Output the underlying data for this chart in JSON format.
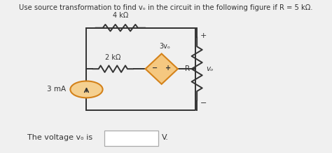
{
  "title": "Use source transformation to find vₒ in the circuit in the following figure if R = 5 kΩ.",
  "bottom_text_prefix": "The voltage vₒ is",
  "bottom_text_suffix": "V.",
  "bg": "#f0f0f0",
  "cc": "#333333",
  "orange": "#d4821a",
  "label_4k": "4 kΩ",
  "label_2k": "2 kΩ",
  "label_3v": "3vₒ",
  "label_R": "R",
  "label_vo": "vₒ",
  "label_3mA": "3 mA",
  "bx_l": 0.23,
  "bx_r": 0.6,
  "bx_t": 0.82,
  "bx_b": 0.28,
  "bx_mid": 0.55
}
